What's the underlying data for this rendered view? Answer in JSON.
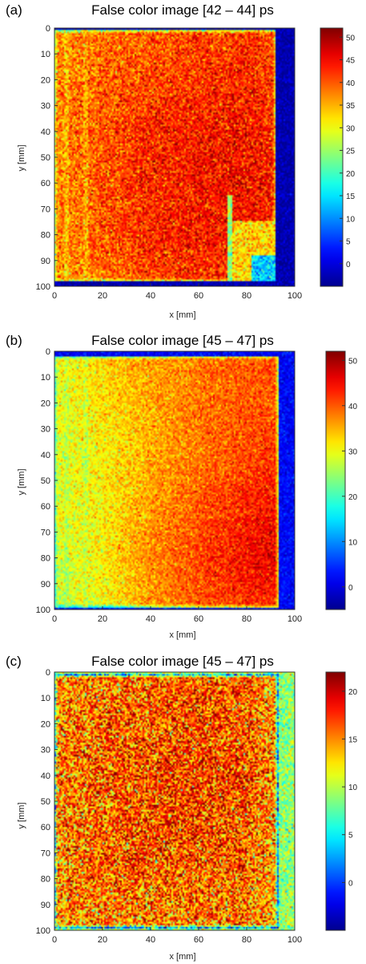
{
  "chart_data": [
    {
      "type": "heatmap",
      "panel_label": "(a)",
      "title": "False color image [42 – 44] ps",
      "xlabel": "x [mm]",
      "ylabel": "y [mm]",
      "xlim": [
        0,
        100
      ],
      "ylim": [
        0,
        100
      ],
      "x_ticks": [
        0,
        20,
        40,
        60,
        80,
        100
      ],
      "y_ticks": [
        0,
        10,
        20,
        30,
        40,
        50,
        60,
        70,
        80,
        90,
        100
      ],
      "colorbar": {
        "range": [
          -5,
          52
        ],
        "ticks": [
          0,
          5,
          10,
          15,
          20,
          25,
          30,
          35,
          40,
          45,
          50
        ]
      },
      "sample": {
        "x_range": [
          0,
          92
        ],
        "y_range": [
          1,
          98
        ],
        "background_value": -3
      },
      "field": {
        "x": [
          0,
          20,
          40,
          60,
          80,
          90
        ],
        "y": [
          0,
          20,
          40,
          60,
          80,
          100
        ],
        "values": [
          [
            37,
            39,
            40,
            41,
            42,
            41
          ],
          [
            37,
            39,
            41,
            42,
            43,
            42
          ],
          [
            37,
            40,
            43,
            44,
            44,
            43
          ],
          [
            37,
            40,
            43,
            44,
            45,
            44
          ],
          [
            37,
            40,
            43,
            44,
            44,
            42
          ],
          [
            36,
            38,
            41,
            42,
            41,
            40
          ]
        ]
      },
      "features": [
        {
          "kind": "band",
          "x_range": [
            72,
            74
          ],
          "y_range": [
            65,
            98
          ],
          "value": 14
        },
        {
          "kind": "region",
          "x_range": [
            74,
            92
          ],
          "y_range": [
            75,
            98
          ],
          "value": 33
        },
        {
          "kind": "region",
          "x_range": [
            82,
            92
          ],
          "y_range": [
            88,
            98
          ],
          "value": 14
        },
        {
          "kind": "band",
          "x_range": [
            4,
            6
          ],
          "y_range": [
            1,
            98
          ],
          "value": 33
        },
        {
          "kind": "band",
          "x_range": [
            12,
            14
          ],
          "y_range": [
            1,
            98
          ],
          "value": 34
        }
      ],
      "noise": 4
    },
    {
      "type": "heatmap",
      "panel_label": "(b)",
      "title": "False color image [45 – 47] ps",
      "xlabel": "x [mm]",
      "ylabel": "y [mm]",
      "xlim": [
        0,
        100
      ],
      "ylim": [
        0,
        100
      ],
      "x_ticks": [
        0,
        20,
        40,
        60,
        80,
        100
      ],
      "y_ticks": [
        0,
        10,
        20,
        30,
        40,
        50,
        60,
        70,
        80,
        90,
        100
      ],
      "colorbar": {
        "range": [
          -5,
          52
        ],
        "ticks": [
          0,
          10,
          20,
          30,
          40,
          50
        ]
      },
      "sample": {
        "x_range": [
          0,
          93
        ],
        "y_range": [
          2,
          99
        ],
        "background_value": 2
      },
      "field": {
        "x": [
          0,
          20,
          40,
          60,
          80,
          90
        ],
        "y": [
          0,
          20,
          40,
          60,
          80,
          100
        ],
        "values": [
          [
            30,
            33,
            36,
            38,
            40,
            40
          ],
          [
            29,
            32,
            35,
            38,
            40,
            40
          ],
          [
            29,
            31,
            35,
            38,
            41,
            42
          ],
          [
            29,
            31,
            36,
            40,
            43,
            44
          ],
          [
            28,
            31,
            37,
            41,
            45,
            46
          ],
          [
            27,
            30,
            36,
            40,
            42,
            43
          ]
        ]
      },
      "features": [
        {
          "kind": "band",
          "x_range": [
            4,
            6
          ],
          "y_range": [
            2,
            99
          ],
          "value": 26
        },
        {
          "kind": "band",
          "x_range": [
            12,
            14
          ],
          "y_range": [
            2,
            99
          ],
          "value": 27
        }
      ],
      "noise": 3
    },
    {
      "type": "heatmap",
      "panel_label": "(c)",
      "title": "False color image [45 – 47] ps",
      "xlabel": "x [mm]",
      "ylabel": "y [mm]",
      "xlim": [
        0,
        100
      ],
      "ylim": [
        0,
        100
      ],
      "x_ticks": [
        0,
        20,
        40,
        60,
        80,
        100
      ],
      "y_ticks": [
        0,
        10,
        20,
        30,
        40,
        50,
        60,
        70,
        80,
        90,
        100
      ],
      "colorbar": {
        "range": [
          -5,
          22
        ],
        "ticks": [
          0,
          5,
          10,
          15,
          20
        ]
      },
      "sample": {
        "x_range": [
          0,
          93
        ],
        "y_range": [
          1,
          99
        ],
        "background_value": 9
      },
      "field": {
        "x": [
          0,
          20,
          40,
          60,
          80,
          90
        ],
        "y": [
          0,
          20,
          40,
          60,
          80,
          100
        ],
        "values": [
          [
            15,
            15,
            16,
            16,
            16,
            15
          ],
          [
            15,
            16,
            16,
            17,
            16,
            15
          ],
          [
            15,
            16,
            17,
            17,
            17,
            15
          ],
          [
            15,
            16,
            17,
            17,
            16,
            15
          ],
          [
            15,
            16,
            16,
            16,
            16,
            14
          ],
          [
            14,
            15,
            15,
            15,
            15,
            14
          ]
        ]
      },
      "features": [],
      "noise": 3.5
    }
  ]
}
